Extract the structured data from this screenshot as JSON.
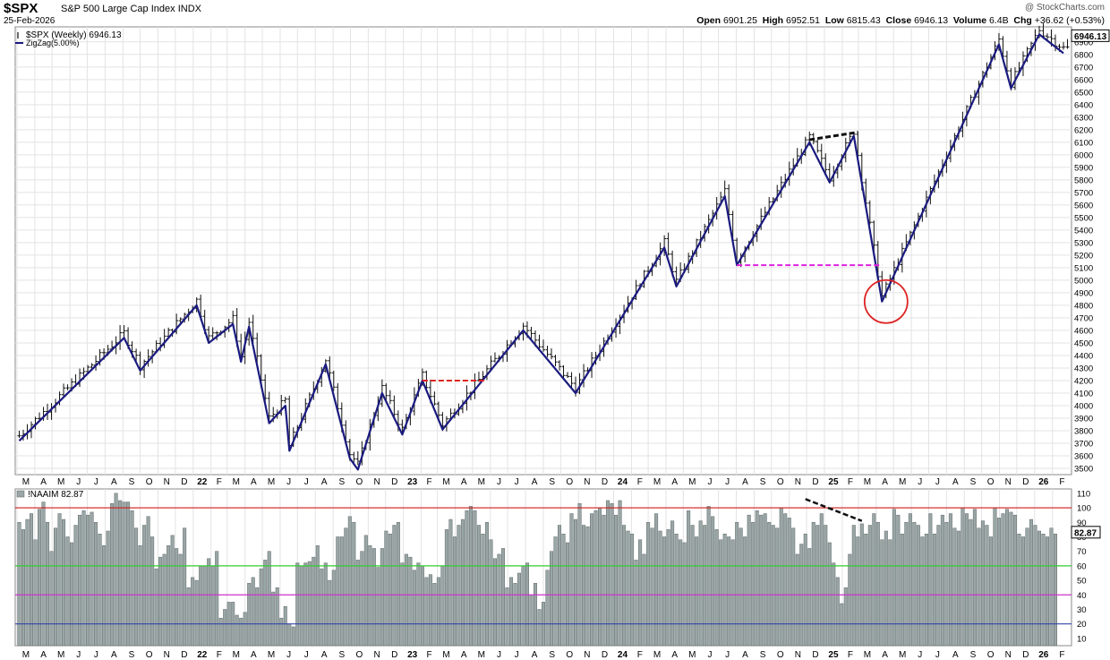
{
  "header": {
    "symbol": "$SPX",
    "name": "S&P 500 Large Cap Index",
    "exchange": "INDX",
    "date": "25-Feb-2026",
    "brand": "@ StockCharts.com",
    "open_label": "Open",
    "open": "6901.25",
    "high_label": "High",
    "high": "6952.51",
    "low_label": "Low",
    "low": "6815.43",
    "close_label": "Close",
    "close": "6946.13",
    "volume_label": "Volume",
    "volume": "6.4B",
    "chg_label": "Chg",
    "chg": "+36.62 (+0.53%)"
  },
  "colors": {
    "price_bar": "#111111",
    "zigzag": "#1a1a80",
    "naaim_bar": "#9aa6a6",
    "bg": "#ffffff",
    "grid": "#e3e3e3",
    "red_line": "#d01a1a",
    "green_line": "#33cc33",
    "magenta_line": "#cc33cc",
    "blue_line": "#3344aa",
    "annotation_red": "#dd2222",
    "annotation_magenta": "#dd22dd",
    "annotation_black": "#111111"
  },
  "chart_data": [
    {
      "type": "line",
      "title": "$SPX S&P 500 Large Cap Index INDX",
      "legend": [
        {
          "name": "$SPX (Weekly) 6946.13",
          "icon": "bar-icon"
        },
        {
          "name": "ZigZag(5.00%)",
          "icon": "line-icon"
        }
      ],
      "legend_position": "top-left",
      "grid": true,
      "ylim": [
        3450,
        7020
      ],
      "last_value_label": "6946.13",
      "y_ticks": [
        3500,
        3600,
        3700,
        3800,
        3900,
        4000,
        4100,
        4200,
        4300,
        4400,
        4500,
        4600,
        4700,
        4800,
        4900,
        5000,
        5100,
        5200,
        5300,
        5400,
        5500,
        5600,
        5700,
        5800,
        5900,
        6000,
        6100,
        6200,
        6300,
        6400,
        6500,
        6600,
        6700,
        6800,
        6900
      ],
      "x_months": [
        "M",
        "A",
        "M",
        "J",
        "J",
        "A",
        "S",
        "O",
        "N",
        "D",
        "22",
        "F",
        "M",
        "A",
        "M",
        "J",
        "J",
        "A",
        "S",
        "O",
        "N",
        "D",
        "23",
        "F",
        "M",
        "A",
        "M",
        "J",
        "J",
        "A",
        "S",
        "O",
        "N",
        "D",
        "24",
        "F",
        "M",
        "A",
        "M",
        "J",
        "J",
        "A",
        "S",
        "O",
        "N",
        "D",
        "25",
        "F",
        "M",
        "A",
        "M",
        "J",
        "J",
        "A",
        "S",
        "O",
        "N",
        "D",
        "26",
        "F"
      ],
      "zigzag": {
        "name": "ZigZag(5.00%)",
        "x": [
          "2021-03-05",
          "2021-09-03",
          "2021-10-01",
          "2022-01-07",
          "2022-01-28",
          "2022-03-11",
          "2022-03-25",
          "2022-04-08",
          "2022-05-13",
          "2022-06-10",
          "2022-06-17",
          "2022-08-19",
          "2022-09-30",
          "2022-10-14",
          "2022-11-25",
          "2022-12-30",
          "2023-02-03",
          "2023-03-10",
          "2023-07-28",
          "2023-10-27",
          "2024-03-29",
          "2024-04-19",
          "2024-07-12",
          "2024-08-02",
          "2024-12-06",
          "2025-01-10",
          "2025-02-21",
          "2025-04-11",
          "2025-10-31",
          "2025-11-21",
          "2026-01-09",
          "2026-02-20"
        ],
        "y": [
          3720,
          4540,
          4280,
          4800,
          4500,
          4650,
          4350,
          4630,
          3860,
          4000,
          3640,
          4330,
          3580,
          3490,
          4100,
          3770,
          4200,
          3810,
          4600,
          4100,
          5260,
          4950,
          5670,
          5120,
          6100,
          5780,
          6150,
          4830,
          6880,
          6530,
          6960,
          6810
        ]
      },
      "annotations": [
        {
          "kind": "resistance-dashed",
          "color": "red",
          "x": [
            "2023-02-03",
            "2023-05-26"
          ],
          "y": [
            4200,
            4200
          ]
        },
        {
          "kind": "support-dashed",
          "color": "magenta",
          "x": [
            "2024-08-02",
            "2025-04-11"
          ],
          "y": [
            5120,
            5120
          ]
        },
        {
          "kind": "trend-dashed",
          "color": "black",
          "x": [
            "2024-12-06",
            "2025-02-28"
          ],
          "y": [
            6120,
            6180
          ]
        },
        {
          "kind": "circle",
          "color": "red",
          "x": "2025-04-18",
          "y": 4830
        }
      ]
    },
    {
      "type": "bar",
      "title": "!NAAIM 82.87",
      "last_value_label": "82.87",
      "ylim": [
        5,
        113
      ],
      "y_ticks": [
        10,
        20,
        30,
        40,
        50,
        60,
        70,
        80,
        90,
        100,
        110
      ],
      "reference_lines": [
        {
          "value": 100,
          "color": "red"
        },
        {
          "value": 60,
          "color": "green"
        },
        {
          "value": 40,
          "color": "magenta"
        },
        {
          "value": 20,
          "color": "blue"
        }
      ],
      "start": "2021-03-05",
      "interval": "weekly",
      "values": [
        90,
        85,
        92,
        96,
        78,
        99,
        104,
        90,
        70,
        86,
        96,
        92,
        80,
        76,
        88,
        95,
        98,
        95,
        97,
        90,
        82,
        74,
        84,
        103,
        110,
        105,
        104,
        104,
        98,
        86,
        74,
        88,
        94,
        80,
        58,
        66,
        68,
        74,
        81,
        72,
        68,
        86,
        45,
        52,
        50,
        60,
        60,
        65,
        60,
        70,
        24,
        30,
        35,
        35,
        26,
        24,
        28,
        48,
        52,
        45,
        58,
        64,
        70,
        42,
        45,
        24,
        32,
        20,
        18,
        62,
        60,
        62,
        63,
        66,
        74,
        58,
        62,
        50,
        57,
        80,
        80,
        86,
        94,
        90,
        64,
        70,
        81,
        74,
        72,
        59,
        72,
        84,
        82,
        88,
        90,
        62,
        68,
        66,
        57,
        62,
        60,
        52,
        54,
        48,
        52,
        60,
        85,
        92,
        80,
        88,
        92,
        98,
        101,
        98,
        88,
        82,
        90,
        78,
        65,
        68,
        72,
        45,
        52,
        48,
        55,
        60,
        62,
        40,
        48,
        30,
        35,
        57,
        70,
        80,
        88,
        82,
        76,
        96,
        92,
        103,
        88,
        87,
        96,
        98,
        100,
        95,
        105,
        103,
        95,
        105,
        88,
        84,
        82,
        64,
        78,
        68,
        90,
        86,
        96,
        84,
        80,
        85,
        91,
        82,
        78,
        76,
        98,
        88,
        80,
        91,
        88,
        101,
        94,
        85,
        78,
        82,
        80,
        78,
        90,
        86,
        80,
        95,
        90,
        98,
        95,
        96,
        90,
        88,
        86,
        100,
        96,
        93,
        86,
        68,
        75,
        82,
        72,
        90,
        88,
        96,
        88,
        76,
        62,
        52,
        34,
        45,
        68,
        88,
        80,
        89,
        82,
        88,
        96,
        90,
        78,
        84,
        78,
        99,
        95,
        82,
        90,
        96,
        90,
        88,
        80,
        82,
        96,
        82,
        88,
        95,
        90,
        96,
        86,
        84,
        100,
        96,
        92,
        99,
        86,
        91,
        88,
        80,
        100,
        93,
        96,
        99,
        97,
        95,
        82,
        80,
        86,
        92,
        88,
        84,
        82,
        80,
        86,
        82
      ]
    }
  ]
}
